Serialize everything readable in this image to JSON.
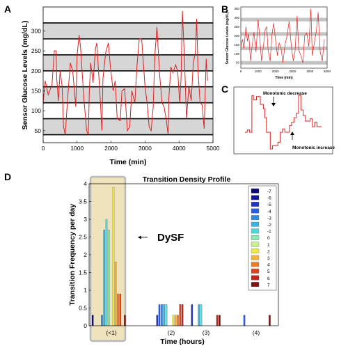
{
  "panels": {
    "A": "A",
    "B": "B",
    "C": "C",
    "D": "D"
  },
  "colors": {
    "glucose_line": "#e02020",
    "band_fill": "#d6d6d6",
    "band_line": "#000000",
    "dysf_highlight": "#efe3bd",
    "dysf_border": "#b8b8b8"
  },
  "chart_data": [
    {
      "panel": "A",
      "type": "line",
      "xlabel": "Time (min)",
      "ylabel": "Sensor Glucose Levels (mg/dL)",
      "xlim": [
        0,
        5000
      ],
      "ylim": [
        20,
        360
      ],
      "xticks": [
        0,
        1000,
        2000,
        3000,
        4000,
        5000
      ],
      "yticks": [
        50,
        100,
        150,
        200,
        250,
        300
      ],
      "gridlines": [
        40,
        80,
        120,
        160,
        200,
        240,
        280,
        320
      ],
      "shaded_bands": [
        [
          40,
          80
        ],
        [
          120,
          160
        ],
        [
          200,
          240
        ],
        [
          280,
          320
        ]
      ],
      "series": [
        {
          "x": [
            0,
            60,
            150,
            260,
            330,
            380,
            400,
            450,
            500,
            560,
            600,
            650,
            720,
            800,
            870,
            960,
            1000,
            1060,
            1100,
            1200,
            1280,
            1330,
            1360,
            1400,
            1470,
            1540,
            1580,
            1680,
            1730,
            1760,
            1840,
            1920,
            1980,
            2060,
            2120,
            2180,
            2270,
            2320,
            2400,
            2480,
            2550,
            2610,
            2700,
            2760,
            2830,
            2900,
            3000,
            3060,
            3120,
            3180,
            3240,
            3290,
            3350,
            3430,
            3500,
            3560,
            3620,
            3680,
            3700,
            3760,
            3820,
            3900,
            3960,
            4020,
            4060,
            4100,
            4160,
            4220,
            4290,
            4360,
            4420,
            4480,
            4520,
            4560,
            4620,
            4680,
            4740,
            4800,
            4840
          ],
          "y": [
            120,
            175,
            140,
            165,
            250,
            250,
            180,
            125,
            200,
            160,
            60,
            40,
            130,
            220,
            200,
            110,
            240,
            290,
            260,
            130,
            50,
            40,
            150,
            220,
            170,
            255,
            270,
            130,
            50,
            180,
            245,
            270,
            210,
            150,
            175,
            80,
            75,
            150,
            155,
            50,
            60,
            150,
            120,
            210,
            280,
            280,
            160,
            120,
            60,
            50,
            110,
            240,
            310,
            190,
            120,
            110,
            80,
            40,
            130,
            210,
            195,
            215,
            200,
            120,
            180,
            350,
            230,
            80,
            160,
            125,
            220,
            245,
            330,
            200,
            120,
            115,
            55,
            230,
            175
          ]
        }
      ]
    },
    {
      "panel": "B",
      "type": "line",
      "xlabel": "Time (min)",
      "ylabel": "Sensor Glucose Levels (mg/dL)",
      "xlim": [
        0,
        5000
      ],
      "ylim": [
        20,
        360
      ],
      "xticks": [
        0,
        1000,
        2000,
        3000,
        4000,
        5000
      ],
      "yticks": [
        50,
        100,
        150,
        200,
        250,
        300,
        350
      ],
      "shaded_bands": [
        [
          40,
          60
        ],
        [
          120,
          140
        ],
        [
          200,
          220
        ],
        [
          280,
          300
        ]
      ],
      "series": [
        {
          "x": [
            0,
            100,
            180,
            300,
            380,
            460,
            560,
            650,
            760,
            880,
            1000,
            1080,
            1200,
            1320,
            1400,
            1500,
            1580,
            1700,
            1800,
            1900,
            2020,
            2120,
            2220,
            2320,
            2440,
            2560,
            2680,
            2800,
            2920,
            3040,
            3140,
            3260,
            3360,
            3480,
            3600,
            3700,
            3820,
            3940,
            4060,
            4140,
            4260,
            4380,
            4480,
            4600,
            4720,
            4840
          ],
          "y": [
            140,
            180,
            130,
            250,
            170,
            210,
            60,
            140,
            220,
            110,
            290,
            210,
            60,
            150,
            230,
            250,
            120,
            60,
            200,
            270,
            170,
            90,
            160,
            140,
            50,
            150,
            200,
            280,
            150,
            60,
            110,
            310,
            120,
            90,
            50,
            200,
            215,
            140,
            350,
            90,
            160,
            230,
            330,
            110,
            60,
            180
          ]
        }
      ]
    },
    {
      "panel": "C",
      "type": "line",
      "annotations": [
        "Monotonic decrease",
        "Monotonic increase"
      ],
      "series": [
        {
          "x": [
            0,
            6,
            6,
            12,
            12,
            18,
            18,
            22,
            22,
            30,
            30,
            40,
            40,
            48,
            48,
            52,
            52,
            56,
            56,
            62,
            62,
            66,
            66,
            72,
            72,
            86,
            86,
            92,
            92,
            98,
            98,
            104,
            104,
            110,
            110,
            116,
            116,
            122,
            122,
            128,
            128,
            134,
            134,
            140,
            140,
            146,
            146,
            152,
            152,
            158,
            158,
            164,
            164,
            170,
            170,
            176,
            176,
            182,
            182,
            188,
            188,
            194,
            194,
            200
          ],
          "y": [
            30,
            30,
            34,
            34,
            30,
            30,
            96,
            96,
            88,
            88,
            94,
            94,
            80,
            80,
            72,
            72,
            56,
            56,
            30,
            30,
            30,
            30,
            0,
            0,
            6,
            6,
            12,
            12,
            30,
            30,
            36,
            36,
            30,
            30,
            30,
            30,
            42,
            42,
            48,
            48,
            56,
            56,
            64,
            64,
            96,
            96,
            70,
            70,
            60,
            60,
            50,
            50,
            50,
            50,
            54,
            54,
            40,
            40,
            48,
            48,
            40,
            40,
            40,
            40
          ]
        }
      ]
    },
    {
      "panel": "D",
      "type": "bar",
      "title": "Transition Density Profile",
      "xlabel": "Time (hours)",
      "ylabel": "Transition Frequency per day",
      "ylim": [
        0,
        4
      ],
      "yticks": [
        0,
        0.5,
        1,
        1.5,
        2,
        2.5,
        3,
        3.5,
        4
      ],
      "categories": [
        "(<1)",
        "(2)",
        "(3)",
        "(4)"
      ],
      "category_positions": [
        0,
        1.4,
        2.4,
        3.4
      ],
      "highlight_label": "DySF",
      "legend": [
        {
          "label": "-7",
          "color": "#0d0a78"
        },
        {
          "label": "-6",
          "color": "#12179c"
        },
        {
          "label": "-5",
          "color": "#1e35c8"
        },
        {
          "label": "-4",
          "color": "#2a5de6"
        },
        {
          "label": "-3",
          "color": "#2c8ce8"
        },
        {
          "label": "-2",
          "color": "#38b4e6"
        },
        {
          "label": "-1",
          "color": "#4ed8d8"
        },
        {
          "label": "0",
          "color": "#86ecb4"
        },
        {
          "label": "1",
          "color": "#c8f08c"
        },
        {
          "label": "2",
          "color": "#f0ea3c"
        },
        {
          "label": "3",
          "color": "#f4b43c"
        },
        {
          "label": "4",
          "color": "#ef7c24"
        },
        {
          "label": "5",
          "color": "#e0441c"
        },
        {
          "label": "6",
          "color": "#c4241c"
        },
        {
          "label": "7",
          "color": "#821010"
        }
      ],
      "series": [
        {
          "name": "-7",
          "values": [
            0.3,
            0,
            0,
            0
          ]
        },
        {
          "name": "-6",
          "values": [
            0,
            0,
            0,
            0
          ]
        },
        {
          "name": "-5",
          "values": [
            0,
            0.3,
            0.6,
            0
          ]
        },
        {
          "name": "-4",
          "values": [
            0,
            0.6,
            0,
            0.3
          ]
        },
        {
          "name": "-3",
          "values": [
            0.3,
            0.6,
            0,
            0
          ]
        },
        {
          "name": "-2",
          "values": [
            2.7,
            0.6,
            0.6,
            0
          ]
        },
        {
          "name": "-1",
          "values": [
            3.0,
            0.6,
            0.6,
            0
          ]
        },
        {
          "name": "0",
          "values": [
            2.7,
            0,
            0,
            0
          ]
        },
        {
          "name": "1",
          "values": [
            0,
            0,
            0,
            0
          ]
        },
        {
          "name": "2",
          "values": [
            3.9,
            0.3,
            0,
            0
          ]
        },
        {
          "name": "3",
          "values": [
            1.8,
            0.3,
            0,
            0
          ]
        },
        {
          "name": "4",
          "values": [
            0.9,
            0.3,
            0,
            0
          ]
        },
        {
          "name": "5",
          "values": [
            0.9,
            0.6,
            0,
            0
          ]
        },
        {
          "name": "6",
          "values": [
            0,
            0.6,
            0.3,
            0
          ]
        },
        {
          "name": "7",
          "values": [
            0.3,
            0,
            0.3,
            0.3
          ]
        }
      ]
    }
  ]
}
